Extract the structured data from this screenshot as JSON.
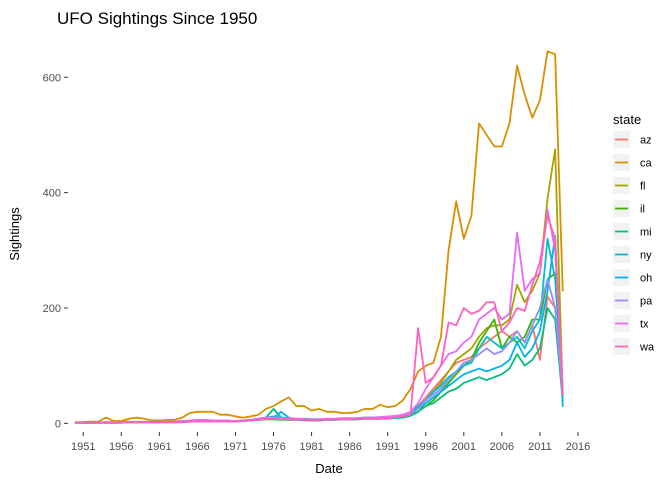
{
  "chart_data": {
    "type": "line",
    "title": "UFO Sightings Since 1950",
    "xlabel": "Date",
    "ylabel": "Sightings",
    "xlim": [
      1949,
      2018.5
    ],
    "ylim": [
      -15,
      675
    ],
    "x_ticks": [
      1951,
      1956,
      1961,
      1966,
      1971,
      1976,
      1981,
      1986,
      1991,
      1996,
      2001,
      2006,
      2011,
      2016
    ],
    "y_ticks": [
      0,
      200,
      400,
      600
    ],
    "grid": false,
    "legend": {
      "title": "state",
      "placement": "right"
    },
    "years": [
      1950,
      1951,
      1952,
      1953,
      1954,
      1955,
      1956,
      1957,
      1958,
      1959,
      1960,
      1961,
      1962,
      1963,
      1964,
      1965,
      1966,
      1967,
      1968,
      1969,
      1970,
      1971,
      1972,
      1973,
      1974,
      1975,
      1976,
      1977,
      1978,
      1979,
      1980,
      1981,
      1982,
      1983,
      1984,
      1985,
      1986,
      1987,
      1988,
      1989,
      1990,
      1991,
      1992,
      1993,
      1994,
      1995,
      1996,
      1997,
      1998,
      1999,
      2000,
      2001,
      2002,
      2003,
      2004,
      2005,
      2006,
      2007,
      2008,
      2009,
      2010,
      2011,
      2012,
      2013,
      2014
    ],
    "series": [
      {
        "name": "az",
        "color": "#F8766D",
        "values": [
          1,
          1,
          2,
          1,
          2,
          2,
          3,
          3,
          2,
          3,
          2,
          3,
          3,
          3,
          4,
          5,
          6,
          6,
          5,
          5,
          4,
          4,
          5,
          6,
          8,
          10,
          9,
          8,
          9,
          8,
          7,
          6,
          6,
          6,
          7,
          8,
          7,
          8,
          9,
          8,
          8,
          9,
          10,
          12,
          15,
          30,
          45,
          60,
          75,
          90,
          105,
          110,
          115,
          130,
          140,
          150,
          160,
          150,
          160,
          140,
          170,
          110,
          220,
          200,
          50
        ]
      },
      {
        "name": "ca",
        "color": "#D89000",
        "values": [
          2,
          2,
          3,
          3,
          10,
          4,
          4,
          8,
          10,
          8,
          5,
          5,
          6,
          6,
          10,
          18,
          20,
          20,
          20,
          15,
          15,
          12,
          10,
          12,
          15,
          25,
          30,
          38,
          45,
          30,
          30,
          22,
          25,
          20,
          20,
          18,
          18,
          20,
          25,
          25,
          32,
          28,
          30,
          40,
          60,
          90,
          100,
          105,
          150,
          300,
          385,
          320,
          360,
          520,
          500,
          480,
          480,
          520,
          620,
          570,
          530,
          560,
          645,
          640,
          230
        ]
      },
      {
        "name": "fl",
        "color": "#A3A500",
        "values": [
          1,
          1,
          1,
          1,
          2,
          1,
          2,
          2,
          2,
          2,
          2,
          2,
          3,
          3,
          3,
          4,
          5,
          5,
          4,
          4,
          4,
          4,
          5,
          6,
          7,
          8,
          8,
          7,
          8,
          7,
          7,
          6,
          6,
          7,
          7,
          8,
          8,
          8,
          9,
          9,
          10,
          11,
          12,
          14,
          18,
          28,
          40,
          55,
          70,
          90,
          110,
          120,
          130,
          150,
          165,
          170,
          170,
          180,
          240,
          210,
          230,
          260,
          390,
          475,
          50
        ]
      },
      {
        "name": "il",
        "color": "#39B600",
        "values": [
          1,
          1,
          1,
          1,
          1,
          1,
          2,
          2,
          2,
          2,
          2,
          2,
          2,
          2,
          3,
          3,
          4,
          4,
          3,
          3,
          3,
          3,
          4,
          5,
          6,
          7,
          7,
          6,
          6,
          6,
          6,
          5,
          5,
          6,
          6,
          7,
          7,
          7,
          8,
          8,
          8,
          9,
          10,
          12,
          15,
          25,
          30,
          40,
          55,
          70,
          85,
          100,
          110,
          140,
          160,
          180,
          130,
          150,
          140,
          150,
          180,
          180,
          250,
          260,
          60
        ]
      },
      {
        "name": "mi",
        "color": "#00BF7D",
        "values": [
          1,
          1,
          1,
          1,
          1,
          1,
          1,
          2,
          2,
          2,
          2,
          2,
          2,
          2,
          2,
          3,
          3,
          4,
          3,
          3,
          3,
          3,
          4,
          5,
          6,
          10,
          25,
          10,
          6,
          6,
          5,
          5,
          5,
          6,
          6,
          7,
          7,
          7,
          8,
          8,
          8,
          8,
          9,
          10,
          13,
          20,
          30,
          35,
          45,
          55,
          60,
          70,
          75,
          80,
          75,
          80,
          85,
          95,
          120,
          100,
          110,
          130,
          200,
          180,
          40
        ]
      },
      {
        "name": "ny",
        "color": "#00BFC4",
        "values": [
          1,
          1,
          1,
          1,
          2,
          1,
          2,
          2,
          2,
          2,
          2,
          2,
          3,
          3,
          3,
          4,
          5,
          5,
          4,
          4,
          4,
          4,
          5,
          6,
          8,
          10,
          12,
          10,
          9,
          8,
          8,
          7,
          7,
          7,
          8,
          8,
          8,
          9,
          10,
          10,
          10,
          10,
          11,
          13,
          18,
          30,
          40,
          55,
          65,
          80,
          90,
          100,
          105,
          130,
          150,
          140,
          130,
          140,
          150,
          130,
          160,
          180,
          320,
          250,
          60
        ]
      },
      {
        "name": "oh",
        "color": "#00B0F6",
        "values": [
          1,
          1,
          1,
          1,
          1,
          1,
          1,
          2,
          2,
          2,
          2,
          2,
          2,
          2,
          2,
          3,
          3,
          3,
          3,
          3,
          3,
          3,
          4,
          5,
          6,
          8,
          10,
          20,
          10,
          7,
          6,
          6,
          6,
          6,
          7,
          7,
          7,
          8,
          9,
          9,
          9,
          10,
          11,
          13,
          16,
          25,
          35,
          45,
          55,
          65,
          75,
          85,
          90,
          95,
          90,
          95,
          100,
          110,
          140,
          115,
          130,
          160,
          230,
          325,
          30
        ]
      },
      {
        "name": "pa",
        "color": "#9590FF",
        "values": [
          1,
          1,
          1,
          1,
          1,
          1,
          2,
          2,
          2,
          2,
          2,
          2,
          3,
          3,
          3,
          3,
          4,
          4,
          4,
          4,
          4,
          4,
          5,
          6,
          7,
          9,
          9,
          8,
          8,
          7,
          7,
          6,
          6,
          7,
          7,
          8,
          8,
          8,
          9,
          9,
          10,
          10,
          11,
          13,
          17,
          25,
          40,
          50,
          60,
          75,
          90,
          105,
          110,
          120,
          130,
          120,
          125,
          140,
          160,
          140,
          170,
          200,
          250,
          200,
          50
        ]
      },
      {
        "name": "tx",
        "color": "#E76BF3",
        "values": [
          1,
          1,
          1,
          1,
          2,
          2,
          2,
          2,
          2,
          2,
          2,
          2,
          3,
          3,
          4,
          4,
          6,
          6,
          5,
          5,
          5,
          4,
          5,
          6,
          8,
          10,
          10,
          9,
          9,
          8,
          8,
          7,
          7,
          8,
          8,
          9,
          9,
          9,
          10,
          10,
          11,
          12,
          13,
          15,
          20,
          35,
          60,
          80,
          100,
          120,
          125,
          140,
          150,
          180,
          190,
          200,
          180,
          190,
          330,
          230,
          250,
          260,
          370,
          300,
          60
        ]
      },
      {
        "name": "wa",
        "color": "#FF62BC",
        "values": [
          1,
          1,
          1,
          1,
          1,
          1,
          1,
          2,
          2,
          2,
          2,
          2,
          2,
          2,
          2,
          3,
          3,
          3,
          3,
          3,
          3,
          3,
          4,
          5,
          6,
          8,
          8,
          7,
          7,
          6,
          6,
          6,
          6,
          6,
          7,
          7,
          7,
          8,
          8,
          8,
          8,
          9,
          10,
          12,
          15,
          165,
          70,
          80,
          100,
          175,
          170,
          200,
          190,
          195,
          210,
          210,
          160,
          175,
          200,
          195,
          240,
          280,
          360,
          320,
          50
        ]
      }
    ]
  }
}
